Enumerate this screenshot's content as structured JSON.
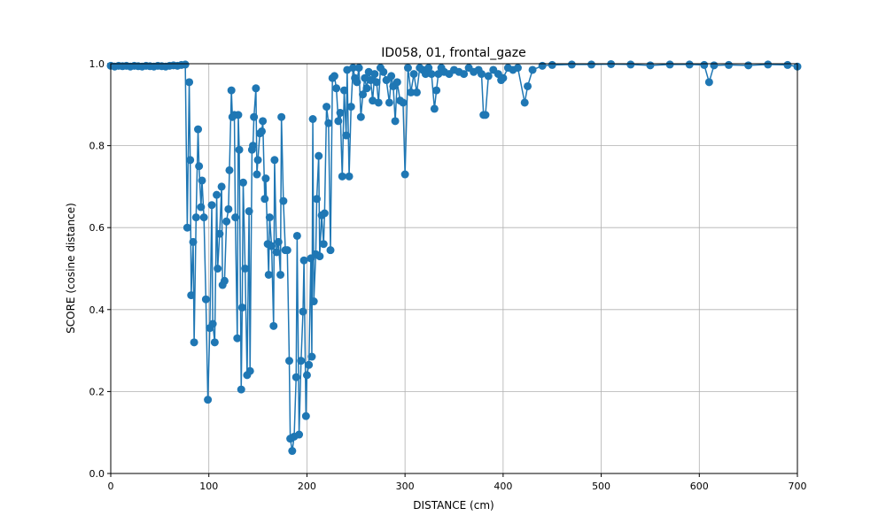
{
  "chart_data": {
    "type": "line",
    "title": "ID058, 01, frontal_gaze",
    "x_label": "DISTANCE (cm)",
    "y_label": "SCORE (cosine distance)",
    "xlim": [
      0,
      700
    ],
    "ylim": [
      0,
      1
    ],
    "xticks": [
      0,
      100,
      200,
      300,
      400,
      500,
      600,
      700
    ],
    "yticks": [
      {
        "value": 0,
        "label": "0.0"
      },
      {
        "value": 0.2,
        "label": "0.2"
      },
      {
        "value": 0.4,
        "label": "0.4"
      },
      {
        "value": 0.6,
        "label": "0.6"
      },
      {
        "value": 0.8,
        "label": "0.8"
      },
      {
        "value": 1,
        "label": "1.0"
      }
    ],
    "grid": true,
    "series": [
      {
        "name": "score",
        "color": "#1f77b4",
        "x": [
          0,
          4,
          8,
          12,
          16,
          20,
          24,
          28,
          32,
          36,
          40,
          44,
          48,
          52,
          56,
          60,
          64,
          68,
          72,
          76,
          78,
          80,
          81,
          82,
          84,
          85,
          87,
          89,
          90,
          92,
          93,
          95,
          97,
          99,
          101,
          103,
          104,
          106,
          108,
          109,
          111,
          113,
          114,
          116,
          118,
          120,
          121,
          123,
          124,
          126,
          127,
          129,
          130,
          131,
          133,
          134,
          135,
          137,
          139,
          141,
          142,
          144,
          145,
          146,
          148,
          149,
          150,
          152,
          154,
          155,
          157,
          158,
          160,
          161,
          162,
          164,
          166,
          167,
          169,
          171,
          173,
          174,
          176,
          178,
          180,
          182,
          183,
          185,
          187,
          189,
          190,
          192,
          194,
          196,
          197,
          199,
          200,
          202,
          204,
          205,
          206,
          207,
          209,
          210,
          212,
          213,
          215,
          217,
          218,
          220,
          222,
          224,
          226,
          228,
          230,
          232,
          234,
          236,
          238,
          240,
          241,
          243,
          245,
          247,
          249,
          251,
          253,
          255,
          257,
          259,
          261,
          263,
          265,
          267,
          269,
          271,
          273,
          275,
          278,
          281,
          284,
          286,
          288,
          290,
          292,
          295,
          298,
          300,
          303,
          306,
          309,
          312,
          315,
          318,
          321,
          324,
          327,
          330,
          332,
          334,
          337,
          340,
          345,
          350,
          355,
          360,
          365,
          370,
          375,
          378,
          380,
          382,
          385,
          390,
          395,
          398,
          400,
          405,
          410,
          415,
          422,
          425,
          430,
          440,
          450,
          470,
          490,
          510,
          530,
          550,
          570,
          590,
          605,
          610,
          615,
          630,
          650,
          670,
          690,
          700
        ],
        "values": [
          0.995,
          0.993,
          0.995,
          0.994,
          0.995,
          0.993,
          0.995,
          0.994,
          0.993,
          0.995,
          0.994,
          0.993,
          0.995,
          0.994,
          0.993,
          0.995,
          0.996,
          0.995,
          0.997,
          0.998,
          0.6,
          0.955,
          0.765,
          0.435,
          0.565,
          0.32,
          0.625,
          0.84,
          0.75,
          0.65,
          0.715,
          0.625,
          0.425,
          0.18,
          0.355,
          0.655,
          0.365,
          0.32,
          0.68,
          0.5,
          0.585,
          0.7,
          0.46,
          0.47,
          0.615,
          0.645,
          0.74,
          0.935,
          0.87,
          0.875,
          0.625,
          0.33,
          0.875,
          0.79,
          0.205,
          0.405,
          0.71,
          0.5,
          0.24,
          0.64,
          0.25,
          0.79,
          0.8,
          0.87,
          0.94,
          0.73,
          0.765,
          0.83,
          0.835,
          0.86,
          0.67,
          0.72,
          0.56,
          0.485,
          0.625,
          0.555,
          0.36,
          0.765,
          0.54,
          0.565,
          0.485,
          0.87,
          0.665,
          0.545,
          0.545,
          0.275,
          0.085,
          0.055,
          0.09,
          0.235,
          0.58,
          0.095,
          0.275,
          0.395,
          0.52,
          0.14,
          0.24,
          0.265,
          0.525,
          0.285,
          0.865,
          0.42,
          0.535,
          0.67,
          0.775,
          0.53,
          0.63,
          0.56,
          0.635,
          0.895,
          0.855,
          0.545,
          0.965,
          0.97,
          0.94,
          0.86,
          0.88,
          0.725,
          0.935,
          0.825,
          0.985,
          0.725,
          0.895,
          0.99,
          0.965,
          0.955,
          0.99,
          0.87,
          0.925,
          0.965,
          0.94,
          0.98,
          0.96,
          0.91,
          0.975,
          0.955,
          0.905,
          0.99,
          0.98,
          0.96,
          0.905,
          0.97,
          0.945,
          0.86,
          0.955,
          0.91,
          0.905,
          0.73,
          0.99,
          0.93,
          0.975,
          0.93,
          0.99,
          0.985,
          0.975,
          0.99,
          0.975,
          0.89,
          0.935,
          0.975,
          0.99,
          0.98,
          0.975,
          0.985,
          0.98,
          0.975,
          0.99,
          0.98,
          0.985,
          0.975,
          0.875,
          0.875,
          0.97,
          0.985,
          0.975,
          0.96,
          0.965,
          0.99,
          0.985,
          0.99,
          0.905,
          0.945,
          0.985,
          0.995,
          0.997,
          0.998,
          0.998,
          0.999,
          0.998,
          0.996,
          0.998,
          0.998,
          0.997,
          0.955,
          0.996,
          0.997,
          0.996,
          0.998,
          0.997,
          0.993
        ]
      }
    ]
  }
}
